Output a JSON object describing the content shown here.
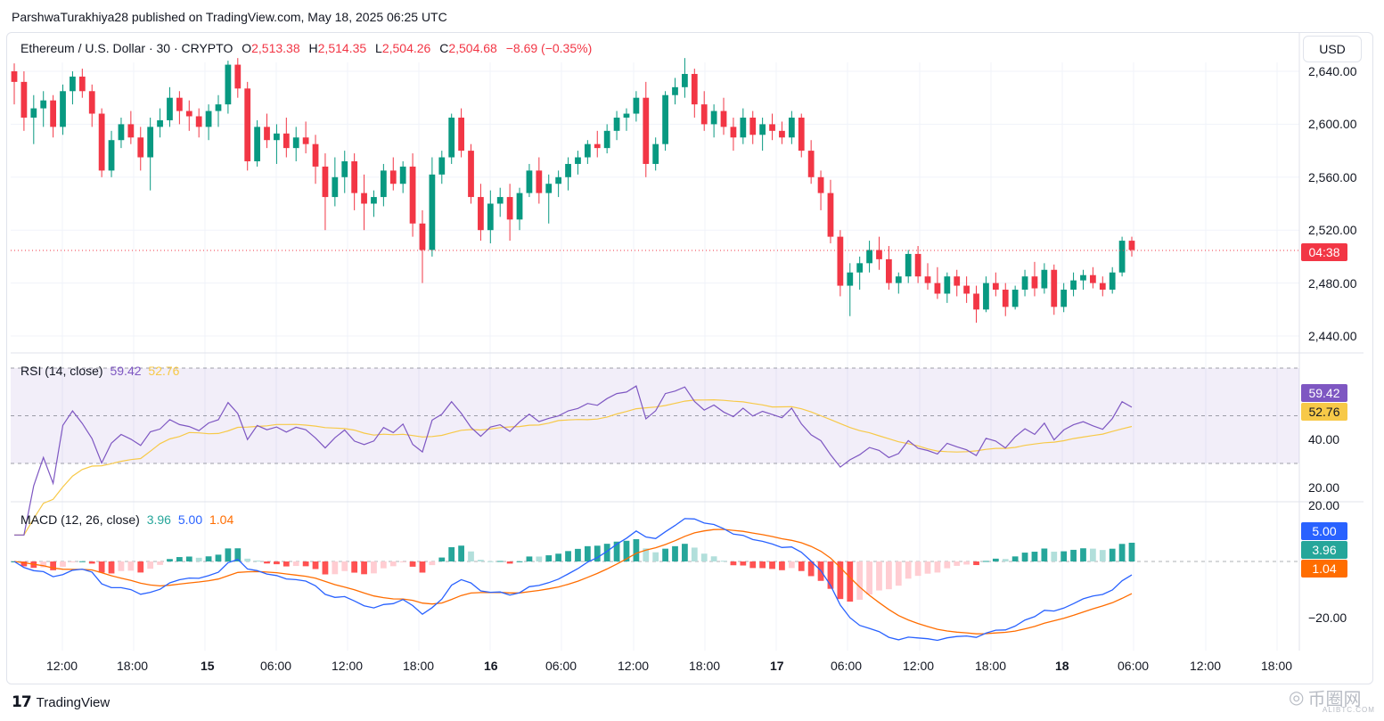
{
  "header": {
    "published_line": "ParshwaTurakhiya28 published on TradingView.com, May 18, 2025 06:25 UTC"
  },
  "symbol": {
    "name": "Ethereum / U.S. Dollar · 30 · CRYPTO",
    "o_label": "O",
    "o_value": "2,513.38",
    "h_label": "H",
    "h_value": "2,514.35",
    "l_label": "L",
    "l_value": "2,504.26",
    "c_label": "C",
    "c_value": "2,504.68",
    "change": "−8.69 (−0.35%)"
  },
  "currency_button": "USD",
  "countdown": "04:38",
  "colors": {
    "up": "#089981",
    "down": "#f23645",
    "rsi": "#7e57c2",
    "rsi_ma": "#f7c948",
    "macd": "#2962ff",
    "signal": "#ff6d00"
  },
  "price_axis": [
    "2,640.00",
    "2,600.00",
    "2,560.00",
    "2,520.00",
    "2,480.00",
    "2,440.00"
  ],
  "rsi": {
    "label": "RSI (14, close)",
    "value": "59.42",
    "ma_value": "52.76",
    "axis": [
      "40.00",
      "20.00"
    ]
  },
  "macd": {
    "label": "MACD (12, 26, close)",
    "hist_value": "3.96",
    "macd_value": "5.00",
    "signal_value": "1.04",
    "axis": [
      "20.00",
      "−20.00"
    ]
  },
  "time_axis": [
    "12:00",
    "18:00",
    "15",
    "06:00",
    "12:00",
    "18:00",
    "16",
    "06:00",
    "12:00",
    "18:00",
    "17",
    "06:00",
    "12:00",
    "18:00",
    "18",
    "06:00",
    "12:00",
    "18:00"
  ],
  "footer": {
    "logo_text": "TradingView",
    "watermark": "币圈网",
    "watermark_sub": "ALIBTC.COM"
  },
  "chart_data": {
    "type": "candlestick",
    "title": "Ethereum / U.S. Dollar · 30 · CRYPTO",
    "ylim": [
      2430,
      2650
    ],
    "price_ticks": [
      2440,
      2480,
      2520,
      2560,
      2600,
      2640
    ],
    "last_price": 2504.68,
    "candles_ohlc": [
      [
        2640,
        2646,
        2615,
        2632
      ],
      [
        2632,
        2640,
        2595,
        2605
      ],
      [
        2605,
        2622,
        2585,
        2612
      ],
      [
        2612,
        2625,
        2598,
        2618
      ],
      [
        2618,
        2622,
        2590,
        2598
      ],
      [
        2598,
        2630,
        2592,
        2625
      ],
      [
        2625,
        2640,
        2615,
        2636
      ],
      [
        2636,
        2642,
        2620,
        2625
      ],
      [
        2625,
        2630,
        2598,
        2608
      ],
      [
        2608,
        2612,
        2560,
        2565
      ],
      [
        2565,
        2595,
        2560,
        2588
      ],
      [
        2588,
        2605,
        2582,
        2600
      ],
      [
        2600,
        2610,
        2585,
        2590
      ],
      [
        2590,
        2598,
        2565,
        2575
      ],
      [
        2575,
        2605,
        2550,
        2598
      ],
      [
        2598,
        2612,
        2590,
        2603
      ],
      [
        2603,
        2628,
        2598,
        2620
      ],
      [
        2620,
        2625,
        2600,
        2610
      ],
      [
        2610,
        2618,
        2595,
        2606
      ],
      [
        2606,
        2612,
        2590,
        2598
      ],
      [
        2598,
        2615,
        2588,
        2610
      ],
      [
        2610,
        2622,
        2598,
        2615
      ],
      [
        2615,
        2648,
        2608,
        2645
      ],
      [
        2645,
        2650,
        2620,
        2627
      ],
      [
        2627,
        2632,
        2565,
        2572
      ],
      [
        2572,
        2603,
        2568,
        2598
      ],
      [
        2598,
        2608,
        2582,
        2588
      ],
      [
        2588,
        2600,
        2570,
        2593
      ],
      [
        2593,
        2605,
        2575,
        2582
      ],
      [
        2582,
        2598,
        2572,
        2590
      ],
      [
        2590,
        2602,
        2578,
        2585
      ],
      [
        2585,
        2592,
        2555,
        2568
      ],
      [
        2568,
        2578,
        2520,
        2545
      ],
      [
        2545,
        2575,
        2538,
        2560
      ],
      [
        2560,
        2580,
        2548,
        2572
      ],
      [
        2572,
        2578,
        2535,
        2548
      ],
      [
        2548,
        2562,
        2520,
        2540
      ],
      [
        2540,
        2550,
        2530,
        2545
      ],
      [
        2545,
        2570,
        2538,
        2565
      ],
      [
        2565,
        2575,
        2550,
        2555
      ],
      [
        2555,
        2572,
        2548,
        2568
      ],
      [
        2568,
        2578,
        2515,
        2525
      ],
      [
        2525,
        2535,
        2480,
        2505
      ],
      [
        2505,
        2575,
        2500,
        2562
      ],
      [
        2562,
        2580,
        2555,
        2575
      ],
      [
        2575,
        2608,
        2570,
        2605
      ],
      [
        2605,
        2612,
        2575,
        2580
      ],
      [
        2580,
        2585,
        2540,
        2545
      ],
      [
        2545,
        2555,
        2512,
        2520
      ],
      [
        2520,
        2550,
        2510,
        2540
      ],
      [
        2540,
        2552,
        2530,
        2545
      ],
      [
        2545,
        2555,
        2512,
        2528
      ],
      [
        2528,
        2552,
        2520,
        2548
      ],
      [
        2548,
        2570,
        2545,
        2565
      ],
      [
        2565,
        2575,
        2540,
        2548
      ],
      [
        2548,
        2562,
        2525,
        2555
      ],
      [
        2555,
        2565,
        2545,
        2560
      ],
      [
        2560,
        2575,
        2550,
        2570
      ],
      [
        2570,
        2580,
        2562,
        2575
      ],
      [
        2575,
        2588,
        2570,
        2585
      ],
      [
        2585,
        2595,
        2575,
        2582
      ],
      [
        2582,
        2600,
        2578,
        2595
      ],
      [
        2595,
        2610,
        2588,
        2605
      ],
      [
        2605,
        2612,
        2595,
        2608
      ],
      [
        2608,
        2625,
        2602,
        2620
      ],
      [
        2620,
        2632,
        2560,
        2570
      ],
      [
        2570,
        2590,
        2565,
        2585
      ],
      [
        2585,
        2625,
        2580,
        2622
      ],
      [
        2622,
        2635,
        2615,
        2628
      ],
      [
        2628,
        2650,
        2620,
        2638
      ],
      [
        2638,
        2642,
        2605,
        2615
      ],
      [
        2615,
        2625,
        2595,
        2600
      ],
      [
        2600,
        2615,
        2590,
        2610
      ],
      [
        2610,
        2620,
        2592,
        2598
      ],
      [
        2598,
        2605,
        2580,
        2590
      ],
      [
        2590,
        2612,
        2585,
        2605
      ],
      [
        2605,
        2610,
        2585,
        2592
      ],
      [
        2592,
        2605,
        2580,
        2600
      ],
      [
        2600,
        2608,
        2588,
        2595
      ],
      [
        2595,
        2602,
        2585,
        2590
      ],
      [
        2590,
        2610,
        2585,
        2605
      ],
      [
        2605,
        2608,
        2575,
        2580
      ],
      [
        2580,
        2588,
        2555,
        2560
      ],
      [
        2560,
        2565,
        2535,
        2548
      ],
      [
        2548,
        2558,
        2510,
        2515
      ],
      [
        2515,
        2520,
        2470,
        2478
      ],
      [
        2478,
        2495,
        2455,
        2488
      ],
      [
        2488,
        2500,
        2475,
        2495
      ],
      [
        2495,
        2512,
        2488,
        2505
      ],
      [
        2505,
        2515,
        2490,
        2498
      ],
      [
        2498,
        2508,
        2475,
        2480
      ],
      [
        2480,
        2488,
        2472,
        2485
      ],
      [
        2485,
        2505,
        2480,
        2502
      ],
      [
        2502,
        2508,
        2480,
        2485
      ],
      [
        2485,
        2495,
        2475,
        2480
      ],
      [
        2480,
        2492,
        2468,
        2472
      ],
      [
        2472,
        2488,
        2465,
        2485
      ],
      [
        2485,
        2490,
        2470,
        2478
      ],
      [
        2478,
        2485,
        2465,
        2472
      ],
      [
        2472,
        2478,
        2450,
        2460
      ],
      [
        2460,
        2485,
        2458,
        2480
      ],
      [
        2480,
        2488,
        2470,
        2475
      ],
      [
        2475,
        2480,
        2455,
        2462
      ],
      [
        2462,
        2478,
        2460,
        2475
      ],
      [
        2475,
        2490,
        2470,
        2485
      ],
      [
        2485,
        2496,
        2470,
        2476
      ],
      [
        2476,
        2495,
        2472,
        2490
      ],
      [
        2490,
        2494,
        2456,
        2462
      ],
      [
        2462,
        2480,
        2458,
        2475
      ],
      [
        2475,
        2488,
        2470,
        2482
      ],
      [
        2482,
        2490,
        2475,
        2486
      ],
      [
        2486,
        2492,
        2476,
        2480
      ],
      [
        2480,
        2485,
        2470,
        2475
      ],
      [
        2475,
        2492,
        2472,
        2488
      ],
      [
        2488,
        2515,
        2485,
        2512
      ],
      [
        2512,
        2515,
        2500,
        2505
      ]
    ],
    "rsi": {
      "ylim": [
        15,
        80
      ],
      "upper_band": 70,
      "lower_band": 30,
      "mid": 50,
      "last": 59.42,
      "ma_last": 52.76
    },
    "macd": {
      "ylim": [
        -28,
        20
      ],
      "macd_last": 5.0,
      "signal_last": 1.04,
      "hist_last": 3.96
    }
  }
}
